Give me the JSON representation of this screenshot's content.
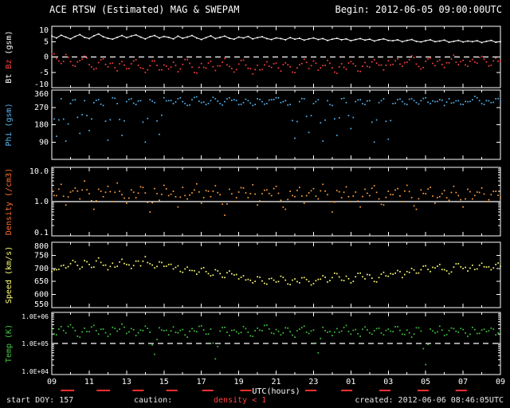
{
  "header": {
    "title": "ACE RTSW (Estimated) MAG & SWEPAM",
    "begin": "Begin: 2012-06-05 09:00:00UTC"
  },
  "footer": {
    "start_doy": "start DOY: 157",
    "caution_label": "caution:",
    "caution_value": "density < 1",
    "created": "created: 2012-06-06 08:46:05UTC"
  },
  "colors": {
    "background": "#000000",
    "frame": "#ffffff",
    "bt": "#ffffff",
    "bz": "#ff4040",
    "phi": "#55b4f0",
    "density": "#ffa040",
    "speed": "#ffff70",
    "temp": "#40c840",
    "caution": "#ff3030"
  },
  "chart_data": {
    "type": "scatter",
    "title": "ACE RTSW (Estimated) MAG & SWEPAM",
    "xlabel": "UTC(hours)",
    "x_hours_span": 24,
    "xticklabels": [
      "09",
      "11",
      "13",
      "15",
      "17",
      "19",
      "21",
      "23",
      "01",
      "03",
      "05",
      "07",
      "09"
    ],
    "caution_segments": [
      [
        0.02,
        0.05
      ],
      [
        0.1,
        0.13
      ],
      [
        0.18,
        0.205
      ],
      [
        0.255,
        0.28
      ],
      [
        0.335,
        0.36
      ],
      [
        0.42,
        0.445
      ],
      [
        0.565,
        0.59
      ],
      [
        0.645,
        0.67
      ],
      [
        0.73,
        0.755
      ],
      [
        0.815,
        0.84
      ],
      [
        0.9,
        0.925
      ]
    ],
    "panels": [
      {
        "name": "mag",
        "ylabel_parts": [
          {
            "text": "Bt ",
            "color": "#ffffff"
          },
          {
            "text": "Bz",
            "color": "#ff4040"
          },
          {
            "text": " (gsm)",
            "color": "#ffffff"
          }
        ],
        "ymin": -10,
        "ymax": 10,
        "log": false,
        "yticks": [
          {
            "v": 10,
            "label": "10"
          },
          {
            "v": 5,
            "label": "5"
          },
          {
            "v": 0,
            "label": "0"
          },
          {
            "v": -5,
            "label": "-5"
          },
          {
            "v": -10,
            "label": "-10"
          }
        ],
        "reflines": [
          {
            "v": 0,
            "dashed": true
          }
        ],
        "series": [
          {
            "name": "Bt",
            "color": "#ffffff",
            "render": "line",
            "values": [
              6.8,
              6.2,
              7.1,
              6.5,
              5.9,
              6.7,
              7.3,
              6.4,
              6.0,
              6.9,
              7.5,
              6.6,
              6.1,
              5.8,
              6.4,
              7.0,
              6.3,
              6.8,
              7.2,
              6.5,
              5.9,
              6.6,
              7.0,
              6.2,
              6.7,
              6.4,
              5.9,
              6.8,
              6.1,
              6.5,
              7.0,
              6.2,
              5.7,
              6.3,
              6.9,
              6.0,
              6.4,
              6.8,
              6.1,
              5.8,
              6.5,
              6.2,
              6.7,
              5.9,
              6.3,
              6.6,
              6.0,
              5.7,
              6.2,
              6.0,
              5.6,
              6.3,
              5.8,
              6.1,
              5.5,
              5.9,
              6.2,
              5.7,
              6.0,
              5.4,
              5.8,
              6.1,
              5.6,
              5.9,
              5.3,
              5.7,
              6.0,
              5.5,
              5.8,
              5.2,
              5.6,
              5.9,
              5.4,
              5.3,
              5.6,
              5.0,
              5.4,
              5.7,
              5.1,
              4.9,
              5.3,
              5.6,
              5.0,
              5.2,
              5.5,
              4.8,
              5.1,
              5.4,
              4.9,
              5.2,
              5.0,
              5.3,
              4.7,
              5.1,
              5.4,
              4.8,
              5.0
            ]
          },
          {
            "name": "Bz",
            "color": "#ff4040",
            "render": "dots",
            "values": [
              1.0,
              -0.5,
              -2.1,
              0.8,
              -1.5,
              -3.0,
              -1.2,
              0.3,
              -2.5,
              -4.0,
              -1.8,
              -0.6,
              -3.2,
              -2.0,
              -4.5,
              -1.5,
              -3.8,
              -2.2,
              -0.9,
              -3.5,
              -5.0,
              -2.8,
              -1.3,
              -4.2,
              -2.6,
              -3.9,
              -1.7,
              -4.8,
              -2.4,
              -0.8,
              -3.3,
              -5.2,
              -2.1,
              -3.6,
              -1.4,
              -4.4,
              -2.9,
              -0.5,
              -3.1,
              -4.9,
              -2.3,
              -1.0,
              -3.7,
              -5.5,
              -2.7,
              -4.1,
              -1.6,
              -3.4,
              -2.0,
              -4.6,
              -1.9,
              -3.2,
              -5.1,
              -2.5,
              -0.7,
              -3.8,
              -1.3,
              -4.3,
              -2.8,
              -1.1,
              -3.5,
              -5.3,
              -2.2,
              -4.0,
              -1.5,
              -2.9,
              -4.7,
              -1.8,
              -3.3,
              -0.9,
              -2.6,
              -4.2,
              -1.2,
              -2.4,
              -0.6,
              -3.0,
              -1.7,
              0.4,
              -2.3,
              -3.9,
              -1.4,
              -0.3,
              -2.8,
              -1.0,
              -3.4,
              -1.9,
              0.6,
              -2.5,
              -1.1,
              -3.0,
              -0.8,
              -2.0,
              0.2,
              -1.6,
              -2.7,
              -0.4,
              -1.3
            ]
          }
        ]
      },
      {
        "name": "phi",
        "ylabel_parts": [
          {
            "text": "Phi (gsm)",
            "color": "#55b4f0"
          }
        ],
        "ymin": 0,
        "ymax": 360,
        "log": false,
        "yticks": [
          {
            "v": 360,
            "label": "360"
          },
          {
            "v": 270,
            "label": "270"
          },
          {
            "v": 180,
            "label": "180"
          },
          {
            "v": 90,
            "label": "90"
          }
        ],
        "reflines": [],
        "series": [
          {
            "name": "Phi",
            "color": "#55b4f0",
            "render": "dots",
            "values": [
              300,
              120,
              315,
              95,
              290,
              310,
              135,
              305,
              150,
              295,
              310,
              280,
              100,
              320,
              290,
              125,
              300,
              315,
              285,
              305,
              90,
              310,
              295,
              130,
              320,
              305,
              290,
              315,
              300,
              280,
              310,
              325,
              295,
              285,
              305,
              315,
              290,
              300,
              320,
              310,
              285,
              295,
              305,
              280,
              315,
              300,
              290,
              310,
              320,
              295,
              305,
              285,
              110,
              300,
              315,
              140,
              290,
              310,
              95,
              305,
              280,
              125,
              315,
              295,
              160,
              300,
              310,
              285,
              305,
              90,
              295,
              315,
              105,
              290,
              310,
              300,
              285,
              315,
              295,
              305,
              320,
              290,
              300,
              310,
              280,
              315,
              295,
              305,
              285,
              300,
              310,
              320,
              290,
              305,
              295,
              315,
              300
            ]
          }
        ]
      },
      {
        "name": "density",
        "ylabel_parts": [
          {
            "text": "Density (/cm3)",
            "color": "#ff7030"
          }
        ],
        "ymin": 0.1,
        "ymax": 10,
        "log": true,
        "yticks": [
          {
            "v": 10,
            "label": "10.0"
          },
          {
            "v": 1,
            "label": "1.0"
          },
          {
            "v": 0.1,
            "label": "0.1"
          }
        ],
        "reflines": [
          {
            "v": 1,
            "dashed": false
          }
        ],
        "series": [
          {
            "name": "Density",
            "color": "#ffa040",
            "render": "dots",
            "values": [
              2.1,
              1.5,
              3.2,
              0.8,
              1.9,
              2.5,
              1.2,
              4.0,
              1.7,
              0.6,
              2.3,
              1.4,
              2.8,
              1.0,
              3.5,
              1.6,
              0.9,
              2.2,
              1.3,
              2.7,
              1.8,
              0.5,
              2.4,
              1.1,
              3.0,
              1.5,
              2.0,
              0.7,
              2.6,
              1.2,
              1.8,
              3.3,
              0.9,
              2.1,
              1.4,
              2.9,
              1.6,
              0.4,
              2.3,
              1.0,
              1.9,
              2.5,
              1.3,
              3.1,
              0.8,
              1.7,
              2.2,
              1.5,
              2.8,
              1.1,
              0.6,
              2.0,
              1.4,
              2.6,
              0.9,
              1.8,
              2.4,
              1.2,
              3.2,
              1.6,
              0.5,
              2.1,
              1.3,
              2.7,
              1.0,
              1.9,
              0.7,
              2.3,
              1.5,
              2.9,
              1.2,
              0.8,
              2.0,
              1.6,
              2.4,
              1.0,
              3.0,
              1.3,
              0.6,
              2.2,
              1.7,
              2.6,
              0.9,
              1.4,
              2.1,
              1.1,
              2.8,
              1.5,
              0.7,
              2.3,
              1.2,
              1.9,
              2.5,
              1.0,
              1.6,
              2.0,
              1.3
            ]
          }
        ]
      },
      {
        "name": "speed",
        "ylabel_parts": [
          {
            "text": "Speed (km/s)",
            "color": "#ffff70"
          }
        ],
        "ymin": 550,
        "ymax": 800,
        "log": false,
        "yticks": [
          {
            "v": 800,
            "label": "800"
          },
          {
            "v": 750,
            "label": "750"
          },
          {
            "v": 700,
            "label": "700"
          },
          {
            "v": 650,
            "label": "650"
          },
          {
            "v": 600,
            "label": "600"
          },
          {
            "v": 550,
            "label": "550"
          }
        ],
        "reflines": [],
        "series": [
          {
            "name": "Speed",
            "color": "#ffff70",
            "render": "dots",
            "values": [
              688,
              695,
              710,
              702,
              718,
              725,
              698,
              730,
              715,
              705,
              740,
              712,
              695,
              720,
              708,
              735,
              715,
              700,
              728,
              710,
              745,
              718,
              702,
              725,
              708,
              715,
              698,
              710,
              685,
              705,
              692,
              678,
              700,
              688,
              672,
              695,
              680,
              665,
              690,
              675,
              660,
              672,
              658,
              645,
              668,
              652,
              640,
              662,
              648,
              670,
              655,
              638,
              660,
              645,
              665,
              650,
              642,
              658,
              672,
              648,
              665,
              680,
              655,
              670,
              645,
              668,
              682,
              660,
              675,
              650,
              665,
              685,
              670,
              678,
              692,
              665,
              688,
              700,
              682,
              695,
              710,
              688,
              702,
              715,
              695,
              680,
              705,
              718,
              700,
              690,
              712,
              698,
              720,
              705,
              695,
              715,
              708
            ]
          }
        ]
      },
      {
        "name": "temp",
        "ylabel_parts": [
          {
            "text": "Temp (K)",
            "color": "#40c840"
          }
        ],
        "ymin": 10000.0,
        "ymax": 1000000.0,
        "log": true,
        "tick_font": 8,
        "yticks": [
          {
            "v": 1000000.0,
            "label": "1.0E+06"
          },
          {
            "v": 100000.0,
            "label": "1.0E+05"
          },
          {
            "v": 10000.0,
            "label": "1.0E+04"
          }
        ],
        "reflines": [
          {
            "v": 100000.0,
            "dashed": true
          }
        ],
        "series": [
          {
            "name": "Temp",
            "color": "#40c840",
            "render": "dots",
            "values": [
              280000.0,
              190000.0,
              350000.0,
              220000.0,
              400000.0,
              260000.0,
              160000.0,
              310000.0,
              240000.0,
              380000.0,
              200000.0,
              290000.0,
              170000.0,
              330000.0,
              250000.0,
              420000.0,
              210000.0,
              300000.0,
              180000.0,
              270000.0,
              360000.0,
              230000.0,
              45000.0,
              320000.0,
              260000.0,
              190000.0,
              340000.0,
              220000.0,
              280000.0,
              160000.0,
              300000.0,
              240000.0,
              370000.0,
              200000.0,
              290000.0,
              32000.0,
              250000.0,
              330000.0,
              180000.0,
              270000.0,
              210000.0,
              350000.0,
              230000.0,
              170000.0,
              310000.0,
              260000.0,
              390000.0,
              220000.0,
              280000.0,
              190000.0,
              320000.0,
              240000.0,
              160000.0,
              290000.0,
              360000.0,
              210000.0,
              270000.0,
              50000.0,
              330000.0,
              230000.0,
              180000.0,
              300000.0,
              250000.0,
              380000.0,
              200000.0,
              280000.0,
              170000.0,
              340000.0,
              220000.0,
              260000.0,
              310000.0,
              190000.0,
              290000.0,
              240000.0,
              350000.0,
              200000.0,
              270000.0,
              160000.0,
              320000.0,
              250000.0,
              21000.0,
              290000.0,
              220000.0,
              360000.0,
              180000.0,
              260000.0,
              300000.0,
              230000.0,
              280000.0,
              170000.0,
              330000.0,
              210000.0,
              270000.0,
              240000.0,
              310000.0,
              190000.0,
              250000.0
            ]
          }
        ]
      }
    ]
  }
}
